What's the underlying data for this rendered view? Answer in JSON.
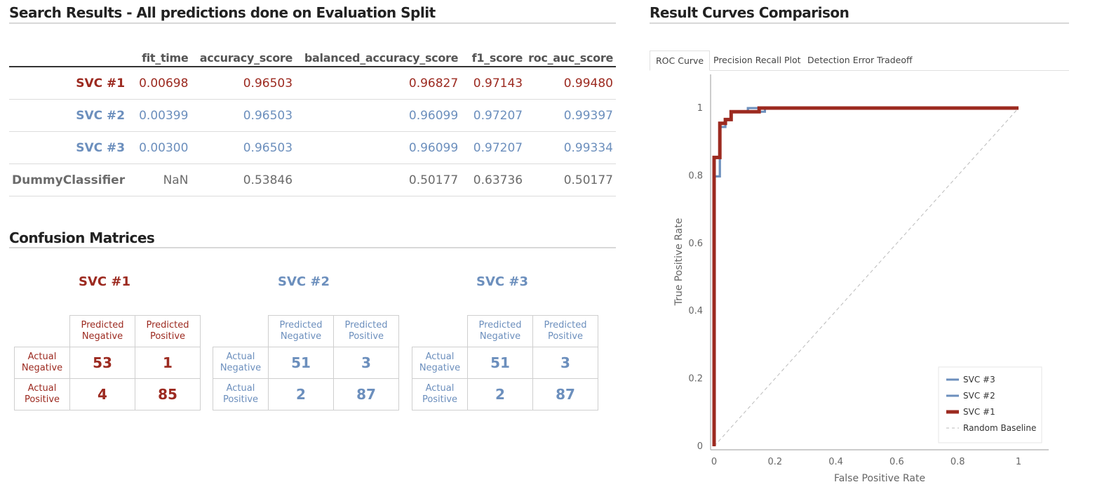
{
  "results": {
    "title": "Search Results - All predictions done on Evaluation Split",
    "columns": [
      "",
      "fit_time",
      "accuracy_score",
      "balanced_accuracy_score",
      "f1_score",
      "roc_auc_score"
    ],
    "rows": [
      {
        "name": "SVC #1",
        "color": "#9c2a20",
        "values": [
          "0.00698",
          "0.96503",
          "0.96827",
          "0.97143",
          "0.99480"
        ]
      },
      {
        "name": "SVC #2",
        "color": "#6c8fbd",
        "values": [
          "0.00399",
          "0.96503",
          "0.96099",
          "0.97207",
          "0.99397"
        ]
      },
      {
        "name": "SVC #3",
        "color": "#6c8fbd",
        "values": [
          "0.00300",
          "0.96503",
          "0.96099",
          "0.97207",
          "0.99334"
        ]
      },
      {
        "name": "DummyClassifier",
        "color": "#6b6b6b",
        "values": [
          "NaN",
          "0.53846",
          "0.50177",
          "0.63736",
          "0.50177"
        ]
      }
    ]
  },
  "confusion": {
    "title": "Confusion Matrices",
    "pred_neg": "Predicted Negative",
    "pred_pos": "Predicted Positive",
    "act_neg": "Actual Negative",
    "act_pos": "Actual Positive",
    "matrices": [
      {
        "name": "SVC #1",
        "color": "#9c2a20",
        "tn": "53",
        "fp": "1",
        "fn": "4",
        "tp": "85"
      },
      {
        "name": "SVC #2",
        "color": "#6c8fbd",
        "tn": "51",
        "fp": "3",
        "fn": "2",
        "tp": "87"
      },
      {
        "name": "SVC #3",
        "color": "#6c8fbd",
        "tn": "51",
        "fp": "3",
        "fn": "2",
        "tp": "87"
      }
    ]
  },
  "curves": {
    "title": "Result Curves Comparison",
    "tabs": [
      "ROC Curve",
      "Precision Recall Plot",
      "Detection Error Tradeoff"
    ],
    "active_tab": "ROC Curve"
  },
  "chart_data": {
    "type": "line",
    "xlabel": "False Positive Rate",
    "ylabel": "True Positive Rate",
    "xlim": [
      0,
      1
    ],
    "ylim": [
      0,
      1
    ],
    "xticks": [
      "0",
      "0.2",
      "0.4",
      "0.6",
      "0.8",
      "1"
    ],
    "yticks": [
      "0",
      "0.2",
      "0.4",
      "0.6",
      "0.8",
      "1"
    ],
    "legend_position": "bottom-right",
    "series": [
      {
        "name": "SVC #3",
        "color": "#6c8fbd",
        "x": [
          0,
          0,
          0.019,
          0.019,
          0.037,
          0.037,
          0.056,
          0.056,
          0.111,
          0.111,
          0.148,
          0.148,
          0.167,
          0.167,
          1
        ],
        "y": [
          0,
          0.798,
          0.798,
          0.944,
          0.944,
          0.966,
          0.966,
          0.989,
          0.989,
          1.0,
          1.0,
          0.989,
          0.989,
          1.0,
          1.0
        ]
      },
      {
        "name": "SVC #2",
        "color": "#6c8fbd",
        "x": [
          0,
          0,
          0.019,
          0.019,
          0.037,
          0.037,
          0.056,
          0.056,
          0.111,
          0.111,
          0.148,
          0.148,
          1
        ],
        "y": [
          0,
          0.798,
          0.798,
          0.944,
          0.944,
          0.966,
          0.966,
          0.989,
          0.989,
          1.0,
          1.0,
          1.0,
          1.0
        ]
      },
      {
        "name": "SVC #1",
        "color": "#9c2a20",
        "x": [
          0,
          0,
          0.009,
          0.009,
          0.019,
          0.019,
          0.037,
          0.037,
          0.056,
          0.056,
          0.148,
          0.148,
          1
        ],
        "y": [
          0,
          0.854,
          0.854,
          0.854,
          0.854,
          0.955,
          0.955,
          0.966,
          0.966,
          0.989,
          0.989,
          1.0,
          1.0
        ]
      },
      {
        "name": "Random Baseline",
        "color": "#bbbbbb",
        "dashed": true,
        "x": [
          0,
          1
        ],
        "y": [
          0,
          1
        ]
      }
    ]
  }
}
